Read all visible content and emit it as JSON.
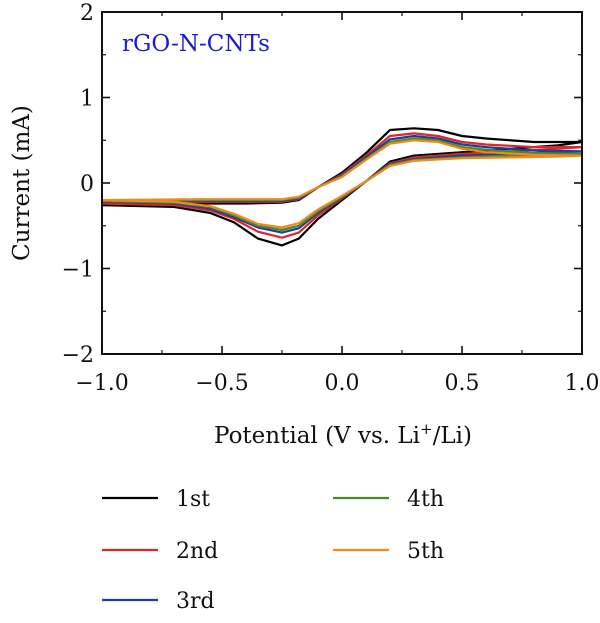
{
  "chart_data": {
    "type": "line",
    "annotation": "rGO-N-CNTs",
    "annotation_color": "#1b1bd1",
    "xlabel": "Potential (V vs. Li",
    "xlabel_sup": "+",
    "xlabel_suffix": "/Li)",
    "ylabel": "Current (mA)",
    "xlim": [
      -1.0,
      1.0
    ],
    "ylim": [
      -2,
      2
    ],
    "xticks": [
      -1.0,
      -0.5,
      0.0,
      0.5,
      1.0
    ],
    "xtick_labels": [
      "−1.0",
      "−0.5",
      "0.0",
      "0.5",
      "1.0"
    ],
    "yticks": [
      -2,
      -1,
      0,
      1,
      2
    ],
    "ytick_labels": [
      "−2",
      "−1",
      "0",
      "1",
      "2"
    ],
    "grid": false,
    "legend_placement": "bottom",
    "series": [
      {
        "name": "1st",
        "color": "#000000",
        "upper": [
          [
            -1.0,
            -0.26
          ],
          [
            -0.6,
            -0.24
          ],
          [
            -0.4,
            -0.24
          ],
          [
            -0.25,
            -0.23
          ],
          [
            -0.18,
            -0.2
          ],
          [
            -0.1,
            -0.05
          ],
          [
            0.0,
            0.12
          ],
          [
            0.1,
            0.35
          ],
          [
            0.2,
            0.62
          ],
          [
            0.3,
            0.64
          ],
          [
            0.4,
            0.62
          ],
          [
            0.5,
            0.55
          ],
          [
            0.6,
            0.52
          ],
          [
            0.8,
            0.48
          ],
          [
            1.0,
            0.48
          ]
        ],
        "lower": [
          [
            1.0,
            0.48
          ],
          [
            0.9,
            0.44
          ],
          [
            0.7,
            0.4
          ],
          [
            0.5,
            0.36
          ],
          [
            0.3,
            0.32
          ],
          [
            0.2,
            0.25
          ],
          [
            0.1,
            0.02
          ],
          [
            0.0,
            -0.2
          ],
          [
            -0.1,
            -0.42
          ],
          [
            -0.18,
            -0.65
          ],
          [
            -0.25,
            -0.73
          ],
          [
            -0.35,
            -0.65
          ],
          [
            -0.45,
            -0.46
          ],
          [
            -0.55,
            -0.35
          ],
          [
            -0.7,
            -0.28
          ],
          [
            -1.0,
            -0.26
          ]
        ]
      },
      {
        "name": "2nd",
        "color": "#e0262c",
        "upper": [
          [
            -1.0,
            -0.24
          ],
          [
            -0.6,
            -0.22
          ],
          [
            -0.4,
            -0.22
          ],
          [
            -0.25,
            -0.22
          ],
          [
            -0.18,
            -0.19
          ],
          [
            -0.1,
            -0.05
          ],
          [
            0.0,
            0.1
          ],
          [
            0.1,
            0.32
          ],
          [
            0.2,
            0.55
          ],
          [
            0.3,
            0.58
          ],
          [
            0.4,
            0.55
          ],
          [
            0.5,
            0.48
          ],
          [
            0.6,
            0.45
          ],
          [
            0.8,
            0.42
          ],
          [
            1.0,
            0.42
          ]
        ],
        "lower": [
          [
            1.0,
            0.42
          ],
          [
            0.9,
            0.4
          ],
          [
            0.7,
            0.37
          ],
          [
            0.5,
            0.34
          ],
          [
            0.3,
            0.3
          ],
          [
            0.2,
            0.23
          ],
          [
            0.1,
            0.02
          ],
          [
            0.0,
            -0.18
          ],
          [
            -0.1,
            -0.38
          ],
          [
            -0.18,
            -0.58
          ],
          [
            -0.25,
            -0.64
          ],
          [
            -0.35,
            -0.57
          ],
          [
            -0.45,
            -0.42
          ],
          [
            -0.55,
            -0.32
          ],
          [
            -0.7,
            -0.26
          ],
          [
            -1.0,
            -0.24
          ]
        ]
      },
      {
        "name": "3rd",
        "color": "#1f3f9f",
        "upper": [
          [
            -1.0,
            -0.22
          ],
          [
            -0.6,
            -0.21
          ],
          [
            -0.4,
            -0.21
          ],
          [
            -0.25,
            -0.21
          ],
          [
            -0.18,
            -0.18
          ],
          [
            -0.1,
            -0.05
          ],
          [
            0.0,
            0.09
          ],
          [
            0.1,
            0.3
          ],
          [
            0.2,
            0.51
          ],
          [
            0.3,
            0.55
          ],
          [
            0.4,
            0.52
          ],
          [
            0.5,
            0.45
          ],
          [
            0.6,
            0.42
          ],
          [
            0.8,
            0.38
          ],
          [
            1.0,
            0.37
          ]
        ],
        "lower": [
          [
            1.0,
            0.37
          ],
          [
            0.9,
            0.36
          ],
          [
            0.7,
            0.34
          ],
          [
            0.5,
            0.32
          ],
          [
            0.3,
            0.28
          ],
          [
            0.2,
            0.22
          ],
          [
            0.1,
            0.02
          ],
          [
            0.0,
            -0.17
          ],
          [
            -0.1,
            -0.35
          ],
          [
            -0.18,
            -0.53
          ],
          [
            -0.25,
            -0.58
          ],
          [
            -0.35,
            -0.52
          ],
          [
            -0.45,
            -0.4
          ],
          [
            -0.55,
            -0.3
          ],
          [
            -0.7,
            -0.24
          ],
          [
            -1.0,
            -0.22
          ]
        ]
      },
      {
        "name": "4th",
        "color": "#4a8a2c",
        "upper": [
          [
            -1.0,
            -0.21
          ],
          [
            -0.6,
            -0.2
          ],
          [
            -0.4,
            -0.2
          ],
          [
            -0.25,
            -0.2
          ],
          [
            -0.18,
            -0.17
          ],
          [
            -0.1,
            -0.05
          ],
          [
            0.0,
            0.08
          ],
          [
            0.1,
            0.28
          ],
          [
            0.2,
            0.48
          ],
          [
            0.3,
            0.52
          ],
          [
            0.4,
            0.5
          ],
          [
            0.5,
            0.42
          ],
          [
            0.6,
            0.39
          ],
          [
            0.8,
            0.35
          ],
          [
            1.0,
            0.34
          ]
        ],
        "lower": [
          [
            1.0,
            0.34
          ],
          [
            0.9,
            0.33
          ],
          [
            0.7,
            0.32
          ],
          [
            0.5,
            0.3
          ],
          [
            0.3,
            0.27
          ],
          [
            0.2,
            0.21
          ],
          [
            0.1,
            0.02
          ],
          [
            0.0,
            -0.16
          ],
          [
            -0.1,
            -0.33
          ],
          [
            -0.18,
            -0.5
          ],
          [
            -0.25,
            -0.55
          ],
          [
            -0.35,
            -0.5
          ],
          [
            -0.45,
            -0.38
          ],
          [
            -0.55,
            -0.28
          ],
          [
            -0.7,
            -0.23
          ],
          [
            -1.0,
            -0.21
          ]
        ]
      },
      {
        "name": "5th",
        "color": "#f08a1c",
        "upper": [
          [
            -1.0,
            -0.2
          ],
          [
            -0.6,
            -0.19
          ],
          [
            -0.4,
            -0.19
          ],
          [
            -0.25,
            -0.19
          ],
          [
            -0.18,
            -0.16
          ],
          [
            -0.1,
            -0.05
          ],
          [
            0.0,
            0.07
          ],
          [
            0.1,
            0.27
          ],
          [
            0.2,
            0.46
          ],
          [
            0.3,
            0.5
          ],
          [
            0.4,
            0.48
          ],
          [
            0.5,
            0.4
          ],
          [
            0.6,
            0.36
          ],
          [
            0.8,
            0.33
          ],
          [
            1.0,
            0.32
          ]
        ],
        "lower": [
          [
            1.0,
            0.32
          ],
          [
            0.9,
            0.31
          ],
          [
            0.7,
            0.3
          ],
          [
            0.5,
            0.29
          ],
          [
            0.3,
            0.26
          ],
          [
            0.2,
            0.2
          ],
          [
            0.1,
            0.02
          ],
          [
            0.0,
            -0.15
          ],
          [
            -0.1,
            -0.31
          ],
          [
            -0.18,
            -0.47
          ],
          [
            -0.25,
            -0.52
          ],
          [
            -0.35,
            -0.48
          ],
          [
            -0.45,
            -0.36
          ],
          [
            -0.55,
            -0.27
          ],
          [
            -0.7,
            -0.22
          ],
          [
            -1.0,
            -0.2
          ]
        ]
      }
    ]
  }
}
